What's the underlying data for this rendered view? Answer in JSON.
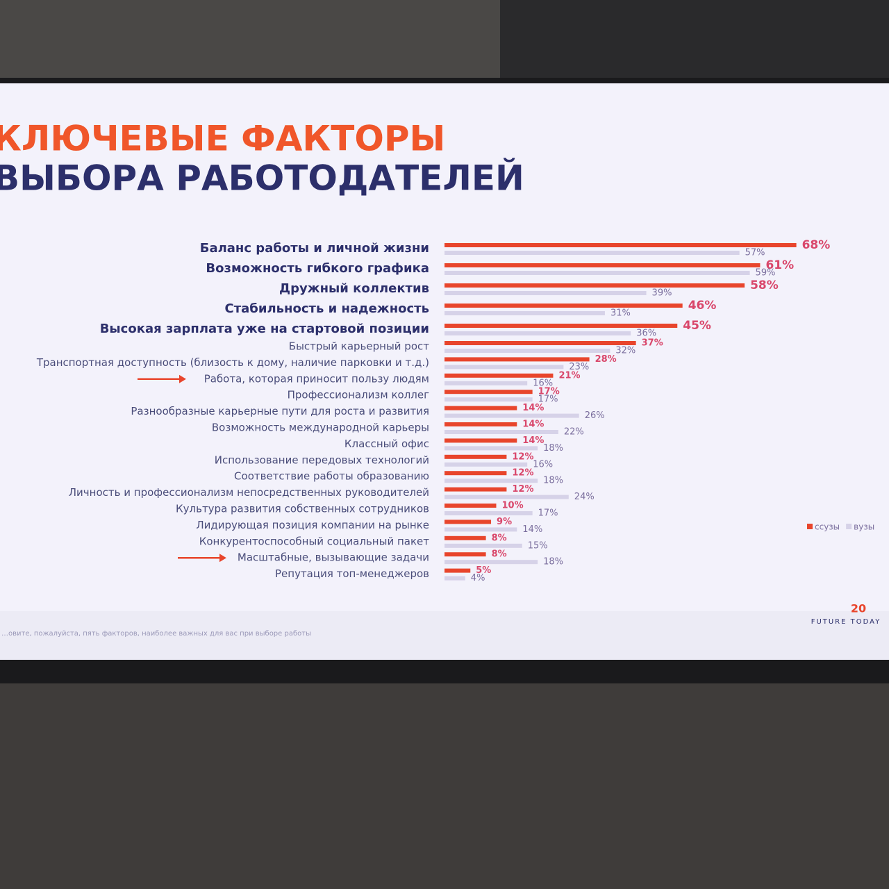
{
  "chart_data": {
    "type": "bar",
    "orientation": "horizontal",
    "title_lines": [
      "КЛЮЧЕВЫЕ ФАКТОРЫ",
      "ВЫБОРА РАБОТОДАТЕЛЕЙ"
    ],
    "categories": [
      "Баланс работы и личной жизни",
      "Возможность гибкого графика",
      "Дружный коллектив",
      "Стабильность и надежность",
      "Высокая зарплата уже на стартовой позиции",
      "Быстрый карьерный рост",
      "Транспортная доступность (близость к дому, наличие парковки и т.д.)",
      "Работа, которая приносит пользу людям",
      "Профессионализм коллег",
      "Разнообразные карьерные пути для роста и развития",
      "Возможность международной карьеры",
      "Классный офис",
      "Использование передовых технологий",
      "Соответствие работы образованию",
      "Личность и профессионализм непосредственных руководителей",
      "Культура развития собственных сотрудников",
      "Лидирующая позиция компании на рынке",
      "Конкурентоспособный социальный пакет",
      "Масштабные, вызывающие задачи",
      "Репутация топ-менеджеров"
    ],
    "series": [
      {
        "name": "ссузы",
        "color": "#e8452c",
        "label_color": "#d9476b",
        "values": [
          68,
          61,
          58,
          46,
          45,
          37,
          28,
          21,
          17,
          14,
          14,
          14,
          12,
          12,
          12,
          10,
          9,
          8,
          8,
          5
        ],
        "value_labels": [
          "68%",
          "61%",
          "58%",
          "46%",
          "45%",
          "37%",
          "28%",
          "21%",
          "17%",
          "14%",
          "14%",
          "14%",
          "12%",
          "12%",
          "12%",
          "10%",
          "9%",
          "8%",
          "8%",
          "5%"
        ]
      },
      {
        "name": "вузы",
        "color": "#d6d2e8",
        "label_color": "#7b6f9e",
        "values": [
          57,
          59,
          39,
          31,
          36,
          32,
          23,
          16,
          17,
          26,
          22,
          18,
          16,
          18,
          24,
          17,
          14,
          15,
          18,
          4
        ],
        "value_labels": [
          "57%",
          "59%",
          "39%",
          "31%",
          "36%",
          "32%",
          "23%",
          "16%",
          "17%",
          "26%",
          "22%",
          "18%",
          "16%",
          "18%",
          "24%",
          "17%",
          "14%",
          "15%",
          "18%",
          "4%"
        ]
      }
    ],
    "footnote": "…овите, пожалуйста, пять факторов, наиболее важных для вас при выборе работы",
    "logo_number": "20",
    "logo_text": "FUTURE TODAY"
  }
}
